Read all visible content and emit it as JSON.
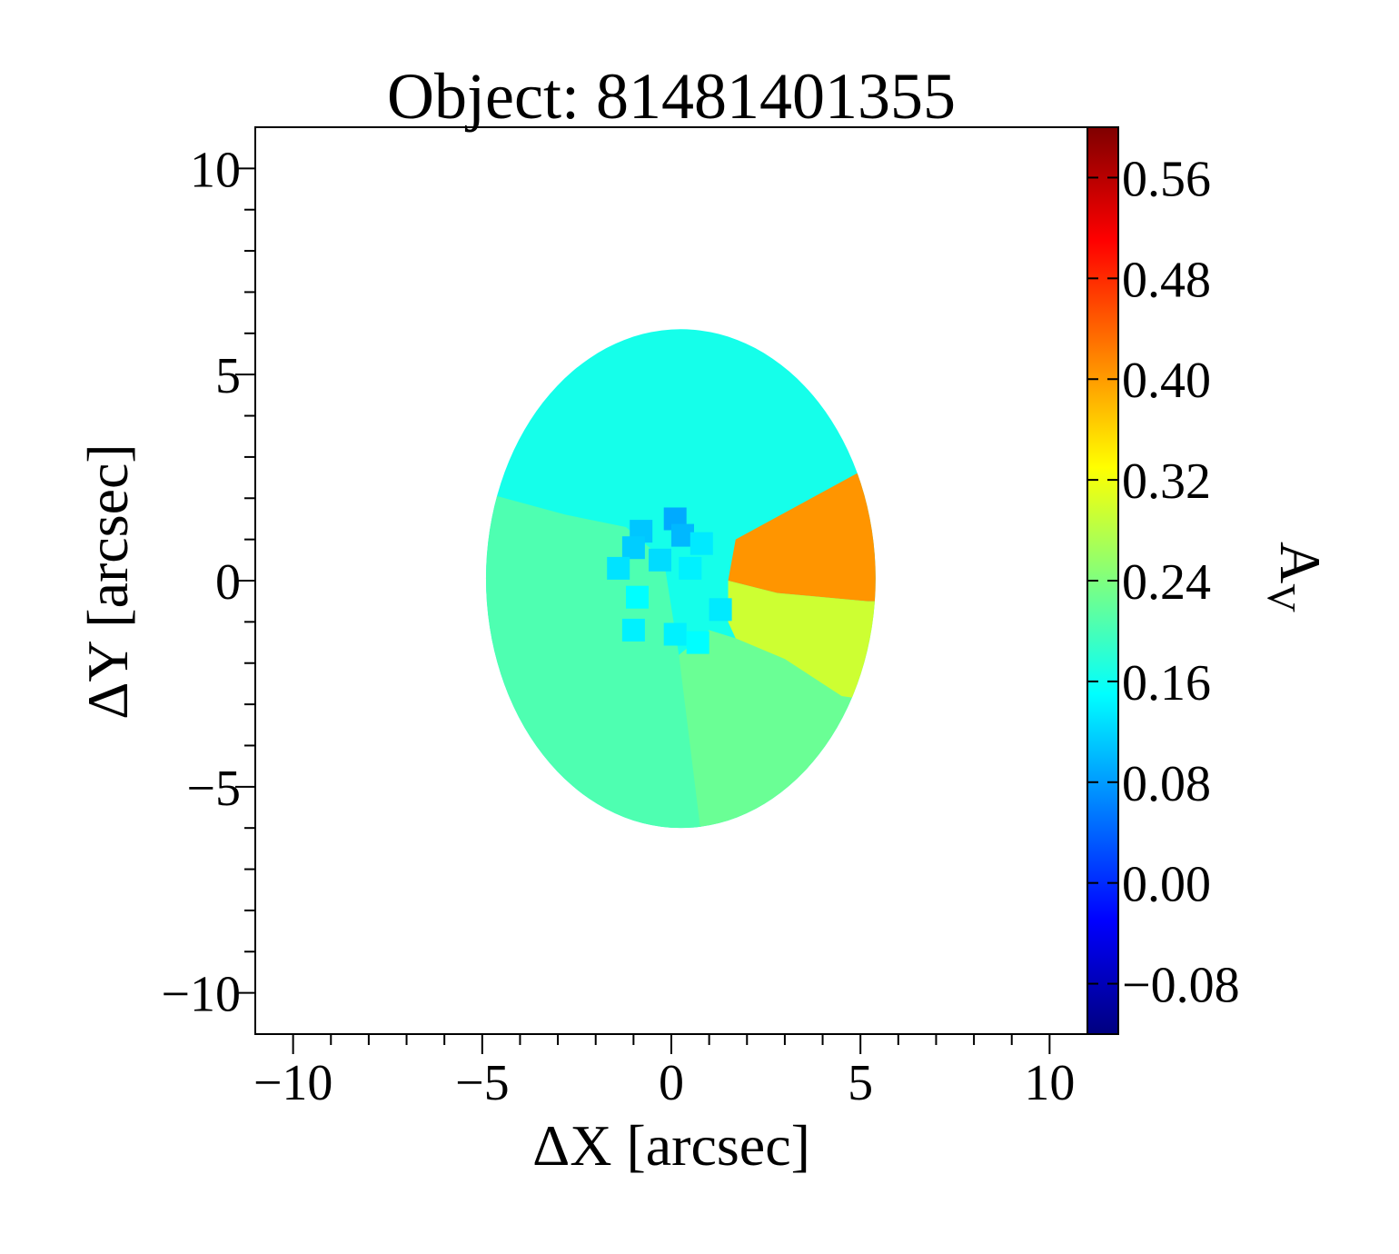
{
  "chart_data": {
    "type": "heatmap",
    "title": "Object: 81481401355",
    "xlabel": "ΔX [arcsec]",
    "ylabel": "ΔY [arcsec]",
    "colorbar_label": "A",
    "colorbar_label_subscript": "V",
    "xlim": [
      -11,
      11
    ],
    "ylim": [
      -11,
      11
    ],
    "x_ticks": [
      -10,
      -5,
      0,
      5,
      10
    ],
    "x_tick_labels": [
      "−10",
      "−5",
      "0",
      "5",
      "10"
    ],
    "y_ticks": [
      -10,
      -5,
      0,
      5,
      10
    ],
    "y_tick_labels": [
      "−10",
      "−5",
      "0",
      "5",
      "10"
    ],
    "colorbar_range": [
      -0.12,
      0.6
    ],
    "colorbar_ticks": [
      -0.08,
      0.0,
      0.08,
      0.16,
      0.24,
      0.32,
      0.4,
      0.48,
      0.56
    ],
    "colorbar_tick_labels": [
      "−0.08",
      "0.00",
      "0.08",
      "0.16",
      "0.24",
      "0.32",
      "0.40",
      "0.48",
      "0.56"
    ],
    "colormap": "jet",
    "grid": false,
    "map": {
      "ellipse": {
        "center": [
          0.25,
          0.05
        ],
        "semi_x": 5.15,
        "semi_y": 6.05
      },
      "regions": [
        {
          "region": "north",
          "value": 0.165
        },
        {
          "region": "south-west",
          "value": 0.205
        },
        {
          "region": "south-east",
          "value": 0.225
        },
        {
          "region": "east",
          "value": 0.405
        },
        {
          "region": "east-south",
          "value": 0.295
        }
      ],
      "cells": [
        {
          "x": 0.1,
          "y": 1.5,
          "value": 0.09
        },
        {
          "x": -0.8,
          "y": 1.2,
          "value": 0.11
        },
        {
          "x": 0.3,
          "y": 1.1,
          "value": 0.1
        },
        {
          "x": -1.0,
          "y": 0.8,
          "value": 0.115
        },
        {
          "x": 0.8,
          "y": 0.9,
          "value": 0.135
        },
        {
          "x": -1.4,
          "y": 0.3,
          "value": 0.13
        },
        {
          "x": -0.3,
          "y": 0.5,
          "value": 0.125
        },
        {
          "x": 0.5,
          "y": 0.3,
          "value": 0.14
        },
        {
          "x": -0.9,
          "y": -0.4,
          "value": 0.15
        },
        {
          "x": 1.3,
          "y": -0.7,
          "value": 0.135
        },
        {
          "x": -1.0,
          "y": -1.2,
          "value": 0.14
        },
        {
          "x": 0.1,
          "y": -1.3,
          "value": 0.14
        },
        {
          "x": 0.7,
          "y": -1.5,
          "value": 0.15
        }
      ]
    }
  }
}
